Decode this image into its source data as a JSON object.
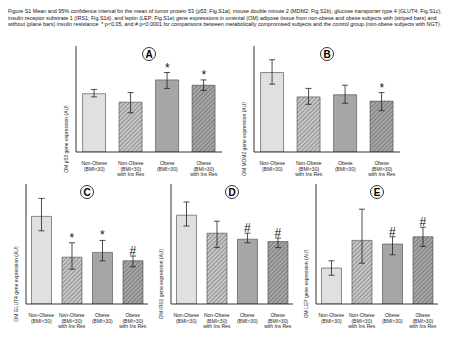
{
  "caption": "Figure S1 Mean and 95% confidence interval for the mean of tumor protein 53 (p53; Fig.S1a), mouse double minute 2 (MDM2; Fig.S1b), glucose transporter type 4 (GLUT4; Fig.S1c), insulin receptor substrate 1 (IRS1; Fig.S1d), and leptin (LEP; Fig.S1e) gene expressions in omental (OM) adipose tissue from non-obese and obese subjects with (striped bars) and without (plane bars) insulin resistance. * p<0.05, and # p<0.0001 for comparisons between metabolically compromised subjects and the control group (non-obese subjects with NGT).",
  "chart_data": [
    {
      "type": "bar",
      "panel": "A",
      "ylabel": "OM p53 gene expression (AU)",
      "categories": [
        "Non-Obese (BMI<30)",
        "Non-Obese (BMI<30) with Ins Res",
        "Obese (BMI>30)",
        "Obese (BMI>30) with Ins Res"
      ],
      "values": [
        5.5,
        4.7,
        6.8,
        6.3
      ],
      "ci": [
        [
          5.2,
          5.9
        ],
        [
          3.7,
          5.6
        ],
        [
          6.0,
          7.5
        ],
        [
          5.8,
          6.8
        ]
      ],
      "markers": [
        null,
        null,
        "*",
        "*"
      ],
      "colors": [
        "#e0e0e0",
        "#c8c8c8",
        "#a6a6a6",
        "#a6a6a6"
      ],
      "ylim": [
        0,
        10
      ],
      "tick_labels": "x"
    },
    {
      "type": "bar",
      "panel": "B",
      "ylabel": "OM MDM2 gene expression (AU)",
      "categories": [
        "Non-Obese (BMI<30)",
        "Non-Obese (BMI<30) with Ins Res",
        "Obese (BMI>30)",
        "Obese (BMI>30) with Ins Res"
      ],
      "values": [
        7.5,
        5.2,
        5.4,
        4.8
      ],
      "ci": [
        [
          6.4,
          8.7
        ],
        [
          4.5,
          6.0
        ],
        [
          4.6,
          6.3
        ],
        [
          3.9,
          5.6
        ]
      ],
      "markers": [
        null,
        null,
        null,
        "*"
      ],
      "colors": [
        "#e0e0e0",
        "#c8c8c8",
        "#a6a6a6",
        "#a6a6a6"
      ],
      "ylim": [
        0,
        10
      ],
      "tick_labels": "x"
    },
    {
      "type": "bar",
      "panel": "C",
      "ylabel": "OM GLUT4 gene expression (AU)",
      "categories": [
        "Non-Obese (BMI<30)",
        "Non-Obese (BMI<30) with Ins Res",
        "Obese (BMI>30)",
        "Obese (BMI>30) with Ins Res"
      ],
      "values": [
        7.3,
        3.9,
        4.3,
        3.6
      ],
      "ci": [
        [
          6.1,
          8.8
        ],
        [
          2.9,
          5.1
        ],
        [
          3.6,
          5.3
        ],
        [
          3.1,
          4.0
        ]
      ],
      "markers": [
        null,
        "*",
        "*",
        "#"
      ],
      "colors": [
        "#e0e0e0",
        "#c8c8c8",
        "#a6a6a6",
        "#a6a6a6"
      ],
      "ylim": [
        0,
        10
      ],
      "tick_labels": "x"
    },
    {
      "type": "bar",
      "panel": "D",
      "ylabel": "OM IRS1 gene expression (AU)",
      "categories": [
        "Non-Obese (BMI<30)",
        "Non-Obese (BMI<30) with Ins Res",
        "Obese (BMI>30)",
        "Obese (BMI>30) with Ins Res"
      ],
      "values": [
        7.4,
        5.9,
        5.4,
        5.2
      ],
      "ci": [
        [
          6.5,
          8.5
        ],
        [
          4.7,
          6.9
        ],
        [
          5.1,
          5.9
        ],
        [
          4.7,
          5.5
        ]
      ],
      "markers": [
        null,
        null,
        "#",
        "#"
      ],
      "colors": [
        "#e0e0e0",
        "#c8c8c8",
        "#a6a6a6",
        "#a6a6a6"
      ],
      "ylim": [
        0,
        10
      ],
      "tick_labels": "x"
    },
    {
      "type": "bar",
      "panel": "E",
      "ylabel": "OM LEP gene expression (AU)",
      "categories": [
        "Non-Obese (BMI<30)",
        "Non-Obese (BMI<30) with Ins Res",
        "Obese (BMI>30)",
        "Obese (BMI>30) with Ins Res"
      ],
      "values": [
        3.0,
        5.3,
        5.0,
        5.6
      ],
      "ci": [
        [
          2.4,
          3.6
        ],
        [
          3.4,
          7.9
        ],
        [
          4.1,
          5.6
        ],
        [
          4.8,
          6.4
        ]
      ],
      "markers": [
        null,
        null,
        "#",
        "#"
      ],
      "colors": [
        "#e0e0e0",
        "#c8c8c8",
        "#a6a6a6",
        "#a6a6a6"
      ],
      "ylim": [
        0,
        10
      ],
      "tick_labels": "x"
    }
  ]
}
